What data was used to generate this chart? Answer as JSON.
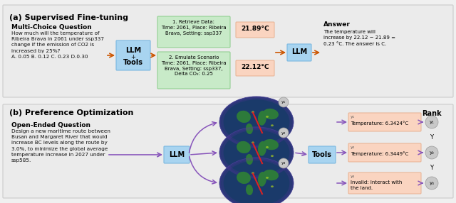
{
  "bg_color": "#f0f0f0",
  "panel_bg": "#ebebeb",
  "section_a_label": "(a) Supervised Fine-tuning",
  "section_b_label": "(b) Preference Optimization",
  "mc_question_title": "Multi-Choice Question",
  "mc_question_text": "How much will the temperature of\nRibeira Brava in 2061 under ssp337\nchange if the emission of CO2 is\nincreased by 25%?\nA. 0.05 B. 0.12 C. 0.23 D.0.30",
  "oe_question_title": "Open-Ended Question",
  "oe_question_text": "Design a new maritime route between\nBusan and Margaret River that would\nincrease BC levels along the route by\n3.0%, to minimize the global average\ntemperature increase in 2027 under\nssp585.",
  "llm_box_color": "#a8d4f0",
  "llm_border_color": "#7ab8e0",
  "green_box_color": "#c8eac8",
  "green_border_color": "#88cc88",
  "salmon_box_color": "#fad4c0",
  "salmon_border_color": "#e8b090",
  "arrow_color": "#cc5500",
  "purple_color": "#8855bb",
  "gray_circle_color": "#c0c0c0",
  "gray_border_color": "#999999",
  "retrieve_text": "1. Retrieve Data:\nTime: 2061, Place: Ribeira\nBrava, Setting: ssp337",
  "emulate_text": "2. Emulate Scenario\nTime: 2061, Place: Ribeira\nBrava, Setting: ssp337,\nDelta CO₂: 0.25",
  "temp1_text": "21.89°C",
  "temp2_text": "22.12°C",
  "answer_title": "Answer",
  "answer_text": "The temperature will\nincrease by 22.12 − 21.89 =\n0.23 °C. The answer is C.",
  "y1_label": "y₁",
  "y2_label": "y₂",
  "y3_label": "y₃",
  "y1_result_label": "y₁",
  "y2_result_label": "y₂",
  "y3_result_label": "y₃",
  "y1_temp": "Temperature: 6.3424°C",
  "y2_temp": "Temperature: 6.3449°C",
  "y3_temp": "Invalid: Interact with\nthe land.",
  "rank_label": "Rank",
  "rank_y1": "y₁",
  "rank_y2": "y₂",
  "rank_y3": "y₃"
}
